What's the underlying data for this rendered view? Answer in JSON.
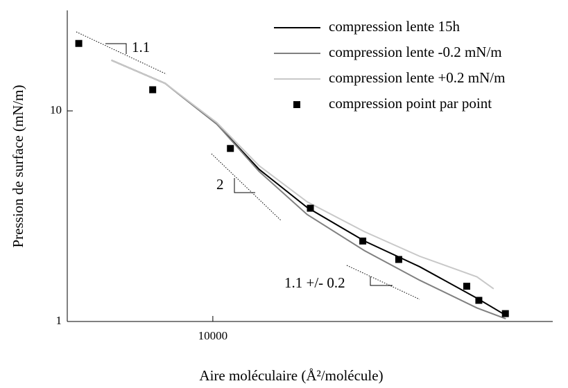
{
  "chart_data": {
    "type": "line",
    "xlabel": "Aire moléculaire (Å²/molécule)",
    "ylabel": "Pression de surface (mN/m)",
    "xscale": "log",
    "yscale": "log",
    "xlim": [
      7000,
      23000
    ],
    "ylim": [
      1,
      30
    ],
    "xticks": [
      10000
    ],
    "yticks": [
      1,
      10
    ],
    "legend": "upper right",
    "series": [
      {
        "name": "compression lente 15h",
        "color": "#000000",
        "kind": "line",
        "x": [
          7800,
          8900,
          10100,
          11200,
          12600,
          14500,
          16600,
          19100,
          20500
        ],
        "values": [
          17.4,
          13.5,
          8.65,
          5.28,
          3.48,
          2.41,
          1.82,
          1.29,
          1.07
        ]
      },
      {
        "name": "compression lente -0.2 mN/m",
        "color": "#808080",
        "kind": "line",
        "x": [
          7800,
          8900,
          10100,
          11200,
          12600,
          14500,
          16600,
          19100,
          20500
        ],
        "values": [
          17.4,
          13.5,
          8.65,
          5.16,
          3.22,
          2.17,
          1.57,
          1.16,
          1.03
        ]
      },
      {
        "name": "compression lente +0.2 mN/m",
        "color": "#c8c8c8",
        "kind": "line",
        "x": [
          7800,
          8900,
          10100,
          11200,
          12600,
          14500,
          16600,
          19100,
          19900
        ],
        "values": [
          17.4,
          13.5,
          8.79,
          5.49,
          3.7,
          2.67,
          2.04,
          1.63,
          1.43
        ]
      },
      {
        "name": "compression point par point",
        "color": "#000000",
        "kind": "scatter",
        "x": [
          7200,
          8630,
          10440,
          12700,
          14440,
          15770,
          18630,
          19190,
          20480
        ],
        "values": [
          20.9,
          12.6,
          6.63,
          3.45,
          2.41,
          1.97,
          1.47,
          1.26,
          1.09
        ]
      }
    ],
    "annotations": [
      "1.1",
      "2",
      "1.1 +/- 0.2"
    ]
  }
}
